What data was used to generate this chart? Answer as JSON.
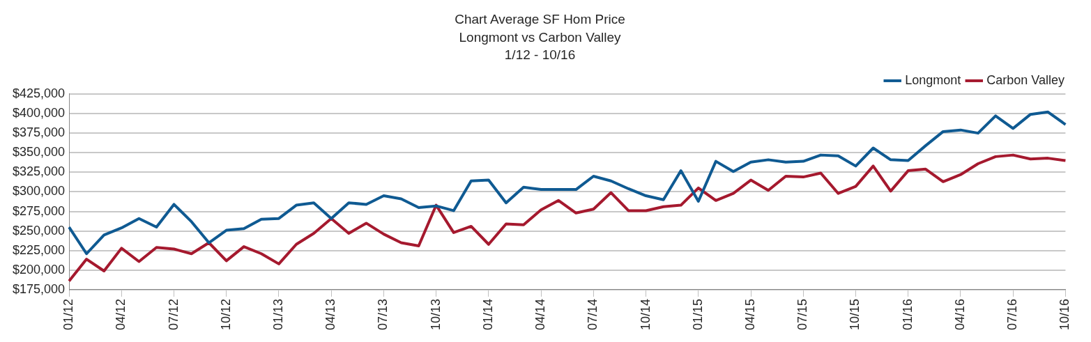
{
  "chart_data": {
    "type": "line",
    "title": [
      "Chart Average SF Hom Price",
      "Longmont vs Carbon Valley",
      "1/12 - 10/16"
    ],
    "categories": [
      "01/12",
      null,
      null,
      "04/12",
      null,
      null,
      "07/12",
      null,
      null,
      "10/12",
      null,
      null,
      "01/13",
      null,
      null,
      "04/13",
      null,
      null,
      "07/13",
      null,
      null,
      "10/13",
      null,
      null,
      "01/14",
      null,
      null,
      "04/14",
      null,
      null,
      "07/14",
      null,
      null,
      "10/14",
      null,
      null,
      "01/15",
      null,
      null,
      "04/15",
      null,
      null,
      "07/15",
      null,
      null,
      "10/15",
      null,
      null,
      "01/16",
      null,
      null,
      "04/16",
      null,
      null,
      "07/16",
      null,
      null,
      "10/16"
    ],
    "series": [
      {
        "name": "Longmont",
        "color": "#0f5a92",
        "values": [
          255000,
          221000,
          245000,
          254000,
          266000,
          255000,
          284000,
          262000,
          235000,
          251000,
          253000,
          265000,
          266000,
          283000,
          286000,
          266000,
          286000,
          284000,
          295000,
          291000,
          280000,
          282000,
          276000,
          314000,
          315000,
          286000,
          306000,
          303000,
          303000,
          303000,
          320000,
          314000,
          304000,
          295000,
          290000,
          327000,
          288000,
          339000,
          326000,
          338000,
          341000,
          338000,
          339000,
          347000,
          346000,
          333000,
          356000,
          341000,
          340000,
          359000,
          377000,
          379000,
          375000,
          397000,
          381000,
          399000,
          402000,
          386000
        ]
      },
      {
        "name": "Carbon Valley",
        "color": "#a5192e",
        "values": [
          186000,
          214000,
          199000,
          228000,
          211000,
          229000,
          227000,
          221000,
          235000,
          212000,
          230000,
          221000,
          208000,
          233000,
          247000,
          266000,
          247000,
          260000,
          246000,
          235000,
          231000,
          283000,
          248000,
          256000,
          233000,
          259000,
          258000,
          277000,
          289000,
          273000,
          278000,
          299000,
          276000,
          276000,
          281000,
          283000,
          305000,
          289000,
          298000,
          315000,
          302000,
          320000,
          319000,
          324000,
          298000,
          307000,
          333000,
          301000,
          327000,
          329000,
          313000,
          322000,
          336000,
          345000,
          347000,
          342000,
          343000,
          340000
        ]
      }
    ],
    "ylim": [
      175000,
      425000
    ],
    "yticks": [
      {
        "value": 175000,
        "label": "$175,000"
      },
      {
        "value": 200000,
        "label": "$200,000"
      },
      {
        "value": 225000,
        "label": "$225,000"
      },
      {
        "value": 250000,
        "label": "$250,000"
      },
      {
        "value": 275000,
        "label": "$275,000"
      },
      {
        "value": 300000,
        "label": "$300,000"
      },
      {
        "value": 325000,
        "label": "$325,000"
      },
      {
        "value": 350000,
        "label": "$350,000"
      },
      {
        "value": 375000,
        "label": "$375,000"
      },
      {
        "value": 400000,
        "label": "$400,000"
      },
      {
        "value": 425000,
        "label": "$425,000"
      }
    ],
    "grid": "y",
    "legend": "top right",
    "marker": "none",
    "line_style": "solid"
  }
}
